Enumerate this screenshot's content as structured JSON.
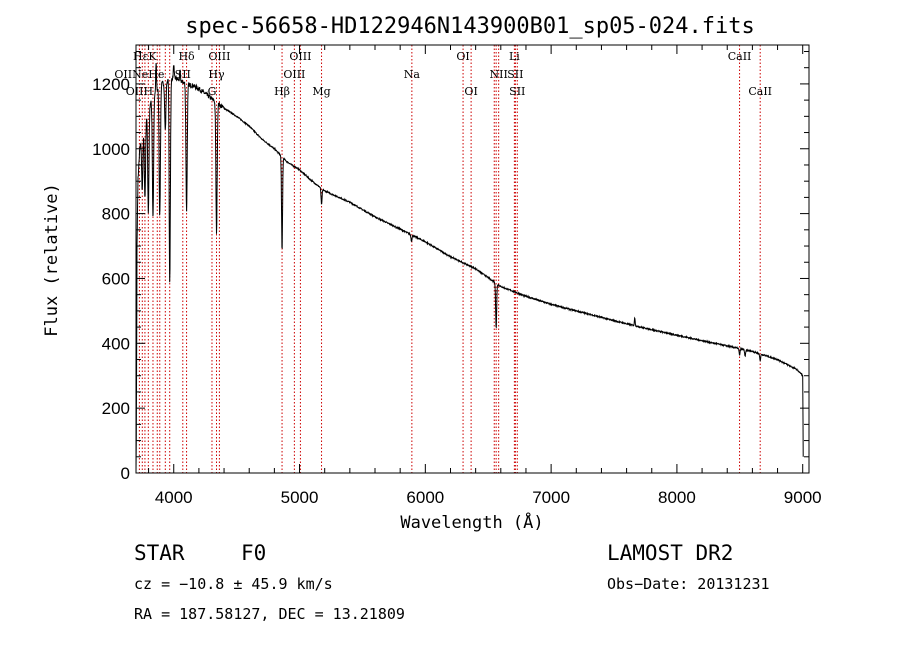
{
  "chart_data": {
    "type": "line",
    "title": "spec-56658-HD122946N143900B01_sp05-024.fits",
    "xlabel": "Wavelength (Å)",
    "ylabel": "Flux (relative)",
    "xlim": [
      3700,
      9050
    ],
    "ylim": [
      0,
      1320
    ],
    "xticks": [
      4000,
      5000,
      6000,
      7000,
      8000,
      9000
    ],
    "yticks": [
      0,
      200,
      400,
      600,
      800,
      1000,
      1200
    ],
    "series": [
      {
        "name": "spectrum",
        "continuum": [
          [
            3700,
            0
          ],
          [
            3703,
            150
          ],
          [
            3708,
            700
          ],
          [
            3715,
            900
          ],
          [
            3730,
            1000
          ],
          [
            3760,
            1080
          ],
          [
            3800,
            1130
          ],
          [
            3850,
            1170
          ],
          [
            3900,
            1200
          ],
          [
            3950,
            1210
          ],
          [
            4000,
            1220
          ],
          [
            4050,
            1210
          ],
          [
            4100,
            1200
          ],
          [
            4150,
            1195
          ],
          [
            4200,
            1185
          ],
          [
            4300,
            1155
          ],
          [
            4400,
            1125
          ],
          [
            4500,
            1100
          ],
          [
            4600,
            1070
          ],
          [
            4700,
            1030
          ],
          [
            4800,
            1000
          ],
          [
            4900,
            960
          ],
          [
            5000,
            935
          ],
          [
            5100,
            900
          ],
          [
            5200,
            870
          ],
          [
            5400,
            835
          ],
          [
            5600,
            790
          ],
          [
            5800,
            752
          ],
          [
            6000,
            713
          ],
          [
            6200,
            667
          ],
          [
            6400,
            630
          ],
          [
            6600,
            575
          ],
          [
            6800,
            545
          ],
          [
            7000,
            520
          ],
          [
            7200,
            500
          ],
          [
            7400,
            480
          ],
          [
            7600,
            460
          ],
          [
            7800,
            442
          ],
          [
            8000,
            425
          ],
          [
            8200,
            408
          ],
          [
            8400,
            392
          ],
          [
            8600,
            375
          ],
          [
            8800,
            350
          ],
          [
            8950,
            320
          ],
          [
            8990,
            305
          ],
          [
            9000,
            300
          ],
          [
            9003,
            100
          ],
          [
            9005,
            0
          ]
        ],
        "absorption": [
          [
            3750,
            180
          ],
          [
            3771,
            250
          ],
          [
            3798,
            320
          ],
          [
            3835,
            370
          ],
          [
            3889,
            400
          ],
          [
            3933,
            150
          ],
          [
            3968,
            630
          ],
          [
            4102,
            390
          ],
          [
            4340,
            400
          ],
          [
            4861,
            290
          ],
          [
            5175,
            50
          ],
          [
            5890,
            20
          ],
          [
            6563,
            140
          ],
          [
            8498,
            20
          ],
          [
            8542,
            20
          ],
          [
            8662,
            20
          ]
        ],
        "emission": [
          [
            3860,
            90
          ],
          [
            3960,
            70
          ],
          [
            4000,
            40
          ],
          [
            4050,
            30
          ],
          [
            7665,
            25
          ]
        ]
      }
    ],
    "lines": {
      "wavelengths": [
        3727,
        3750,
        3771,
        3798,
        3835,
        3869,
        3889,
        3933,
        3968,
        4072,
        4102,
        4304,
        4340,
        4363,
        4861,
        4959,
        5007,
        5175,
        5893,
        6300,
        6364,
        6548,
        6563,
        6583,
        6708,
        6716,
        6731,
        8498,
        8662
      ],
      "labels": [
        {
          "text": "Hδ",
          "w": 4102,
          "row": 0
        },
        {
          "text": "OIII",
          "w": 4363,
          "row": 0
        },
        {
          "text": "OIII",
          "w": 5007,
          "row": 0
        },
        {
          "text": "OI",
          "w": 6300,
          "row": 0
        },
        {
          "text": "Li",
          "w": 6708,
          "row": 0
        },
        {
          "text": "CaII",
          "w": 8498,
          "row": 0
        },
        {
          "text": "SII",
          "w": 4072,
          "row": 1
        },
        {
          "text": "Hγ",
          "w": 4340,
          "row": 1
        },
        {
          "text": "OIII",
          "w": 4959,
          "row": 1
        },
        {
          "text": "Na",
          "w": 5893,
          "row": 1
        },
        {
          "text": "NII",
          "w": 6583,
          "row": 1
        },
        {
          "text": "SII",
          "w": 6716,
          "row": 1
        },
        {
          "text": "G",
          "w": 4304,
          "row": 2
        },
        {
          "text": "Hβ",
          "w": 4861,
          "row": 2
        },
        {
          "text": "Mg",
          "w": 5175,
          "row": 2
        },
        {
          "text": "OI",
          "w": 6364,
          "row": 2
        },
        {
          "text": "SII",
          "w": 6731,
          "row": 2
        },
        {
          "text": "CaII",
          "w": 8662,
          "row": 2
        }
      ],
      "crowded_labels": [
        {
          "text": "HεK",
          "w": 3770,
          "row": 0
        },
        {
          "text": "OIINeHe",
          "w": 3727,
          "row": 1
        },
        {
          "text": "OIIH",
          "w": 3727,
          "row": 2
        }
      ],
      "color": "#cc0000"
    },
    "grid": false,
    "legend": "none"
  },
  "info": {
    "class": "STAR",
    "subclass": "F0",
    "survey": "LAMOST DR2",
    "cz": "cz = −10.8 ± 45.9 km/s",
    "obs_date": "Obs−Date: 20131231",
    "radec": "RA = 187.58127, DEC =  13.21809"
  }
}
